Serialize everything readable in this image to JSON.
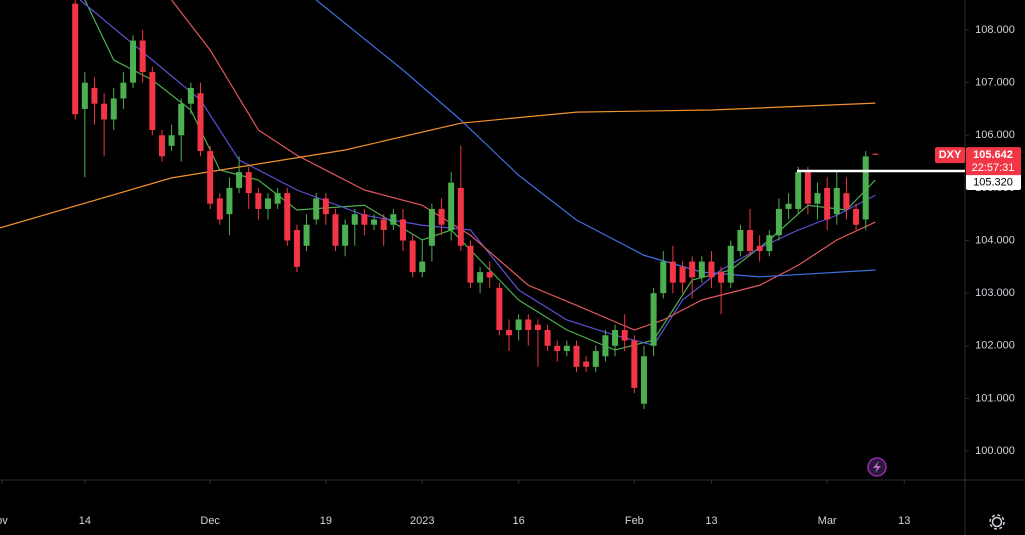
{
  "chart_data": {
    "type": "candlestick",
    "symbol": "DXY",
    "last_price": 105.642,
    "countdown": "22:57:31",
    "price_line": {
      "value": 105.32,
      "label": "105.320"
    },
    "up_color": "#4caf50",
    "down_color": "#f23645",
    "open": [
      108.5,
      106.5,
      106.9,
      106.6,
      106.3,
      106.7,
      107.0,
      107.8,
      107.2,
      106.0,
      105.8,
      106.0,
      106.6,
      106.8,
      105.7,
      104.8,
      104.5,
      105.0,
      105.3,
      104.9,
      104.6,
      104.7,
      104.9,
      104.2,
      103.9,
      104.4,
      104.8,
      104.5,
      103.9,
      104.3,
      104.5,
      104.3,
      104.4,
      104.3,
      104.4,
      104.0,
      103.4,
      103.9,
      104.6,
      104.2,
      105.0,
      103.9,
      103.2,
      103.4,
      103.1,
      102.3,
      102.3,
      102.5,
      102.4,
      102.3,
      102.0,
      101.9,
      102.0,
      101.7,
      101.6,
      101.8,
      102.0,
      102.3,
      102.1,
      100.9,
      102.0,
      103.0,
      103.6,
      103.5,
      103.6,
      103.3,
      103.6,
      103.4,
      103.2,
      103.8,
      104.2,
      103.9,
      103.8,
      104.1,
      104.6,
      104.6,
      105.3,
      104.7,
      105.0,
      104.5,
      104.9,
      104.6,
      104.4,
      105.65
    ],
    "high": [
      108.6,
      107.2,
      107.1,
      106.8,
      106.9,
      107.2,
      107.9,
      108.0,
      107.3,
      106.1,
      106.2,
      106.7,
      107.0,
      107.0,
      105.8,
      104.9,
      105.2,
      105.6,
      105.4,
      105.0,
      104.9,
      105.0,
      105.0,
      104.3,
      104.5,
      104.9,
      104.9,
      104.6,
      104.4,
      104.6,
      104.6,
      104.5,
      104.5,
      104.6,
      104.6,
      104.1,
      104.0,
      104.7,
      104.8,
      105.3,
      105.8,
      104.0,
      103.5,
      103.6,
      103.2,
      102.5,
      102.6,
      102.6,
      102.5,
      102.4,
      102.1,
      102.1,
      102.1,
      101.8,
      102.0,
      102.3,
      102.4,
      102.6,
      102.2,
      102.0,
      103.1,
      103.8,
      103.9,
      103.6,
      103.7,
      103.7,
      103.8,
      103.5,
      104.0,
      104.3,
      104.6,
      104.1,
      104.2,
      104.8,
      104.9,
      105.4,
      105.4,
      105.1,
      105.2,
      105.3,
      105.2,
      104.7,
      105.7,
      105.66
    ],
    "low": [
      106.3,
      105.2,
      106.2,
      105.6,
      106.1,
      106.5,
      106.9,
      107.0,
      106.0,
      105.5,
      105.7,
      105.5,
      106.4,
      105.6,
      104.6,
      104.3,
      104.1,
      104.9,
      104.6,
      104.4,
      104.4,
      104.6,
      103.9,
      103.4,
      103.8,
      104.3,
      104.3,
      103.8,
      103.7,
      103.9,
      104.1,
      104.2,
      103.9,
      104.2,
      103.8,
      103.3,
      103.3,
      103.6,
      104.1,
      104.0,
      103.8,
      103.1,
      103.0,
      103.1,
      102.2,
      101.9,
      102.1,
      102.0,
      101.6,
      101.9,
      101.7,
      101.8,
      101.5,
      101.5,
      101.5,
      101.7,
      101.8,
      101.9,
      101.1,
      100.8,
      101.8,
      102.9,
      103.0,
      103.0,
      102.9,
      103.2,
      103.1,
      102.6,
      103.1,
      103.7,
      103.7,
      103.6,
      103.7,
      104.0,
      104.4,
      104.5,
      104.5,
      104.4,
      104.2,
      104.3,
      104.4,
      104.2,
      104.2,
      105.62
    ],
    "close": [
      106.4,
      107.0,
      106.6,
      106.3,
      106.7,
      107.0,
      107.8,
      107.2,
      106.1,
      105.6,
      106.0,
      106.6,
      106.9,
      105.7,
      104.7,
      104.4,
      105.0,
      105.3,
      104.9,
      104.6,
      104.8,
      104.9,
      104.0,
      103.5,
      104.3,
      104.8,
      104.5,
      103.9,
      104.3,
      104.5,
      104.3,
      104.4,
      104.2,
      104.5,
      104.0,
      103.4,
      103.6,
      104.6,
      104.3,
      105.1,
      103.9,
      103.2,
      103.4,
      103.3,
      102.3,
      102.2,
      102.5,
      102.3,
      102.3,
      102.0,
      101.9,
      102.0,
      101.6,
      101.6,
      101.9,
      102.2,
      102.3,
      102.1,
      101.2,
      101.8,
      103.0,
      103.6,
      103.2,
      103.2,
      103.3,
      103.6,
      103.3,
      103.2,
      103.9,
      104.2,
      103.8,
      103.8,
      104.1,
      104.6,
      104.7,
      105.3,
      104.7,
      104.9,
      104.4,
      105.0,
      104.6,
      104.3,
      105.6,
      105.64
    ],
    "series": [
      {
        "color": "#4caf50",
        "x": [
          1,
          4,
          8,
          12,
          15,
          19,
          23,
          30,
          36,
          39,
          43,
          46,
          51,
          56,
          60,
          64,
          68,
          72,
          76,
          80,
          83
        ],
        "values": [
          108.57,
          107.43,
          107.05,
          106.48,
          105.34,
          105.15,
          104.58,
          104.67,
          104.01,
          104.2,
          103.44,
          102.87,
          102.3,
          101.92,
          102.11,
          103.25,
          103.44,
          104.01,
          104.67,
          104.58,
          105.15
        ]
      },
      {
        "color": "#5c4fd6",
        "x": [
          0.5,
          8,
          13,
          17,
          23,
          30,
          36,
          41,
          46,
          51,
          56,
          60,
          63,
          67,
          71,
          75,
          79,
          83
        ],
        "values": [
          108.57,
          107.43,
          106.67,
          105.53,
          104.96,
          104.48,
          104.29,
          104.2,
          103.06,
          102.49,
          102.2,
          102.01,
          102.87,
          103.44,
          103.86,
          104.2,
          104.48,
          104.86
        ]
      },
      {
        "color": "#e0585c",
        "x": [
          10,
          14,
          19,
          23,
          30,
          36,
          41,
          47,
          52,
          58,
          61,
          65,
          71,
          75,
          79,
          83
        ],
        "values": [
          108.57,
          107.62,
          106.1,
          105.62,
          104.96,
          104.67,
          104.1,
          103.15,
          102.77,
          102.3,
          102.49,
          102.87,
          103.15,
          103.53,
          104.01,
          104.35
        ]
      },
      {
        "color": "#3f6fe0",
        "x": [
          25,
          34,
          40,
          46,
          52,
          59,
          65,
          71,
          83
        ],
        "values": [
          108.57,
          107.24,
          106.29,
          105.24,
          104.39,
          103.72,
          103.4,
          103.31,
          103.44
        ]
      },
      {
        "color": "#f0922e",
        "x": [
          -7.8,
          10,
          28,
          40,
          52,
          66,
          83
        ],
        "values": [
          104.24,
          105.19,
          105.72,
          106.23,
          106.44,
          106.48,
          106.61
        ]
      }
    ],
    "xlim": [
      -7.8,
      92.3
    ],
    "xticks": [
      {
        "value": -7.6,
        "label": "ov"
      },
      {
        "value": 1,
        "label": "14"
      },
      {
        "value": 14,
        "label": "Dec"
      },
      {
        "value": 26,
        "label": "19"
      },
      {
        "value": 36,
        "label": "2023"
      },
      {
        "value": 46,
        "label": "16"
      },
      {
        "value": 58,
        "label": "Feb"
      },
      {
        "value": 66,
        "label": "13"
      },
      {
        "value": 78,
        "label": "Mar"
      },
      {
        "value": 86,
        "label": "13"
      }
    ],
    "ylim": [
      99.45,
      108.57
    ],
    "yticks": [
      {
        "value": 100,
        "label": "100.000"
      },
      {
        "value": 101,
        "label": "101.000"
      },
      {
        "value": 102,
        "label": "102.000"
      },
      {
        "value": 103,
        "label": "103.000"
      },
      {
        "value": 104,
        "label": "104.000"
      },
      {
        "value": 105,
        "label": "105.000"
      },
      {
        "value": 106,
        "label": "106.000"
      },
      {
        "value": 107,
        "label": "107.000"
      },
      {
        "value": 108,
        "label": "108.000"
      }
    ]
  }
}
